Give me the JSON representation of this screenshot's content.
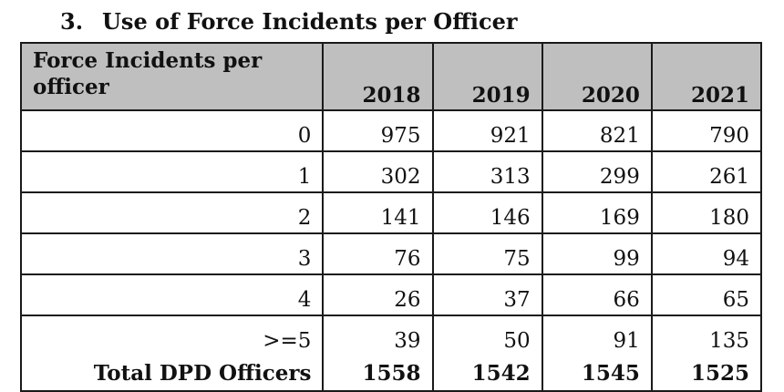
{
  "title": {
    "number": "3.",
    "text": "Use of Force Incidents per Officer"
  },
  "table": {
    "corner_header": "Force Incidents per officer",
    "years": [
      "2018",
      "2019",
      "2020",
      "2021"
    ],
    "rows": [
      {
        "label": "0",
        "values": [
          "975",
          "921",
          "821",
          "790"
        ]
      },
      {
        "label": "1",
        "values": [
          "302",
          "313",
          "299",
          "261"
        ]
      },
      {
        "label": "2",
        "values": [
          "141",
          "146",
          "169",
          "180"
        ]
      },
      {
        "label": "3",
        "values": [
          "76",
          "75",
          "99",
          "94"
        ]
      },
      {
        "label": "4",
        "values": [
          "26",
          "37",
          "66",
          "65"
        ]
      },
      {
        "label": ">=5",
        "values": [
          "39",
          "50",
          "91",
          "135"
        ]
      }
    ],
    "total": {
      "label": "Total DPD Officers",
      "values": [
        "1558",
        "1542",
        "1545",
        "1525"
      ]
    }
  }
}
